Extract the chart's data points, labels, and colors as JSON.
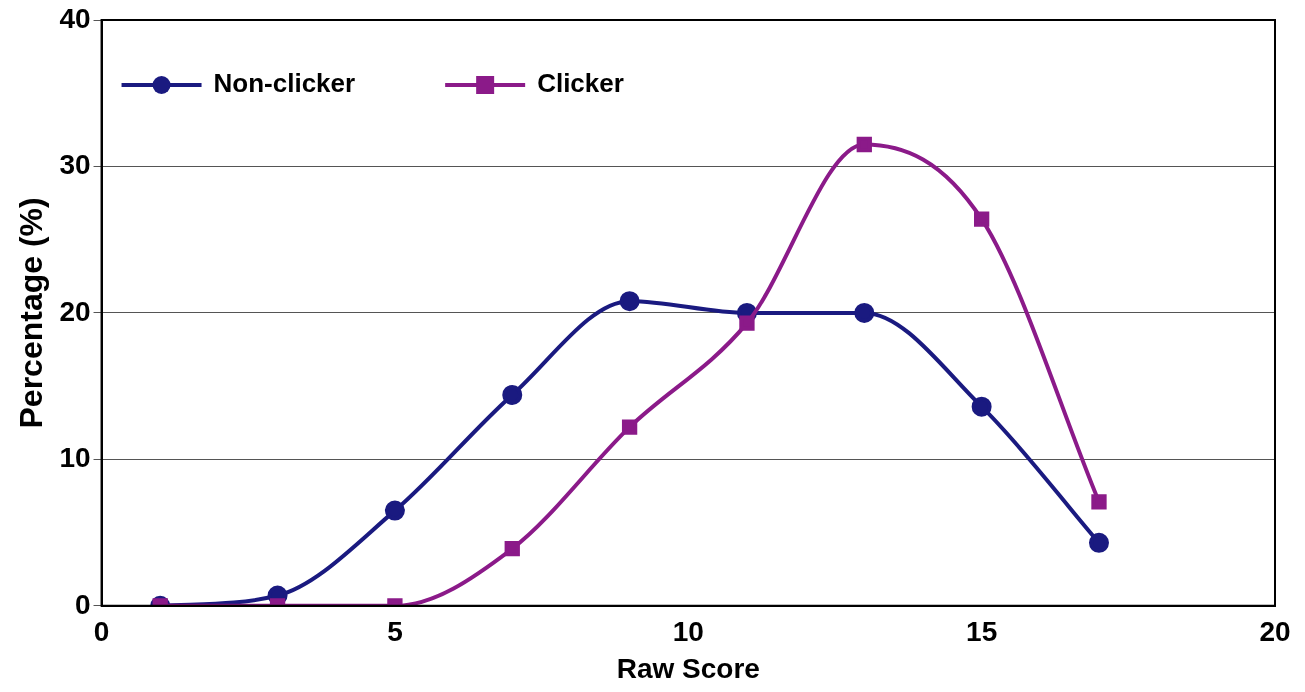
{
  "chart_data": {
    "type": "line",
    "xlabel": "Raw Score",
    "ylabel": "Percentage (%)",
    "x": [
      1,
      3,
      5,
      7,
      9,
      11,
      13,
      15,
      17
    ],
    "series": [
      {
        "name": "Non-clicker",
        "color": "#1a1a80",
        "marker": "circle",
        "values": [
          0,
          0.7,
          6.5,
          14.4,
          20.8,
          20.0,
          20.0,
          13.6,
          4.3
        ]
      },
      {
        "name": "Clicker",
        "color": "#8b1a89",
        "marker": "square",
        "values": [
          0,
          0,
          0,
          3.9,
          12.2,
          19.3,
          31.5,
          26.4,
          7.1
        ]
      }
    ],
    "xlim": [
      0,
      20
    ],
    "xticks": [
      0,
      5,
      10,
      15,
      20
    ],
    "ylim": [
      0,
      40
    ],
    "yticks": [
      0,
      10,
      20,
      30,
      40
    ],
    "grid": "y",
    "legend": "top left",
    "line_style": "solid"
  }
}
